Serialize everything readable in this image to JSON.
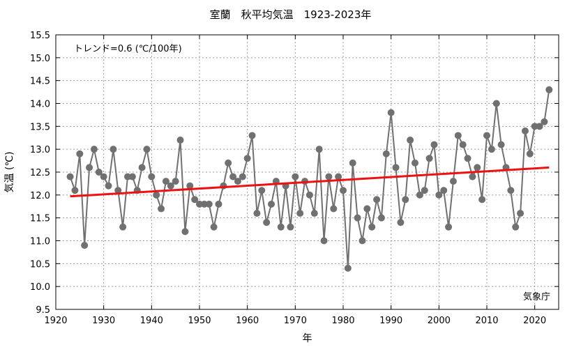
{
  "chart_data": {
    "type": "line",
    "title": "室蘭　秋平均気温　1923-2023年",
    "xlabel": "年",
    "ylabel": "気温 (℃)",
    "xlim": [
      1920,
      2025
    ],
    "ylim": [
      9.5,
      15.5
    ],
    "xticks": [
      1920,
      1930,
      1940,
      1950,
      1960,
      1970,
      1980,
      1990,
      2000,
      2010,
      2020
    ],
    "yticks": [
      9.5,
      10.0,
      10.5,
      11.0,
      11.5,
      12.0,
      12.5,
      13.0,
      13.5,
      14.0,
      14.5,
      15.0,
      15.5
    ],
    "grid": true,
    "annotation": "トレンド=0.6 (℃/100年)",
    "source": "気象庁",
    "series": [
      {
        "color": "#707070",
        "x": [
          1923,
          1924,
          1925,
          1926,
          1927,
          1928,
          1929,
          1930,
          1931,
          1932,
          1933,
          1934,
          1935,
          1936,
          1937,
          1938,
          1939,
          1940,
          1941,
          1942,
          1943,
          1944,
          1945,
          1946,
          1947,
          1948,
          1949,
          1950,
          1951,
          1952,
          1953,
          1954,
          1955,
          1956,
          1957,
          1958,
          1959,
          1960,
          1961,
          1962,
          1963,
          1964,
          1965,
          1966,
          1967,
          1968,
          1969,
          1970,
          1971,
          1972,
          1973,
          1974,
          1975,
          1976,
          1977,
          1978,
          1979,
          1980,
          1981,
          1982,
          1983,
          1984,
          1985,
          1986,
          1987,
          1988,
          1989,
          1990,
          1991,
          1992,
          1993,
          1994,
          1995,
          1996,
          1997,
          1998,
          1999,
          2000,
          2001,
          2002,
          2003,
          2004,
          2005,
          2006,
          2007,
          2008,
          2009,
          2010,
          2011,
          2012,
          2013,
          2014,
          2015,
          2016,
          2017,
          2018,
          2019,
          2020,
          2021,
          2022,
          2023
        ],
        "y": [
          12.4,
          12.1,
          12.9,
          10.9,
          12.6,
          13.0,
          12.5,
          12.4,
          12.2,
          13.0,
          12.1,
          11.3,
          12.4,
          12.4,
          12.1,
          12.6,
          13.0,
          12.4,
          12.0,
          11.7,
          12.3,
          12.2,
          12.3,
          13.2,
          11.2,
          12.2,
          11.9,
          11.8,
          11.8,
          11.8,
          11.3,
          11.8,
          12.2,
          12.7,
          12.4,
          12.3,
          12.4,
          12.8,
          13.3,
          11.6,
          12.1,
          11.4,
          11.8,
          12.3,
          11.3,
          12.2,
          11.3,
          12.4,
          11.6,
          12.3,
          12.0,
          11.6,
          13.0,
          11.0,
          12.4,
          11.7,
          12.4,
          12.1,
          10.4,
          12.7,
          11.5,
          11.0,
          11.7,
          11.3,
          11.9,
          11.5,
          12.9,
          13.8,
          12.6,
          11.4,
          11.9,
          13.2,
          12.7,
          12.0,
          12.1,
          12.8,
          13.1,
          12.0,
          12.1,
          11.3,
          12.3,
          13.3,
          13.1,
          12.8,
          12.4,
          12.6,
          11.9,
          13.3,
          13.0,
          14.0,
          13.1,
          12.6,
          12.1,
          11.3,
          11.6,
          13.4,
          12.9,
          13.5,
          13.5,
          13.6,
          14.3
        ]
      },
      {
        "color": "#ee1111",
        "x": [
          1923,
          2023
        ],
        "y": [
          11.97,
          12.6
        ]
      }
    ]
  }
}
